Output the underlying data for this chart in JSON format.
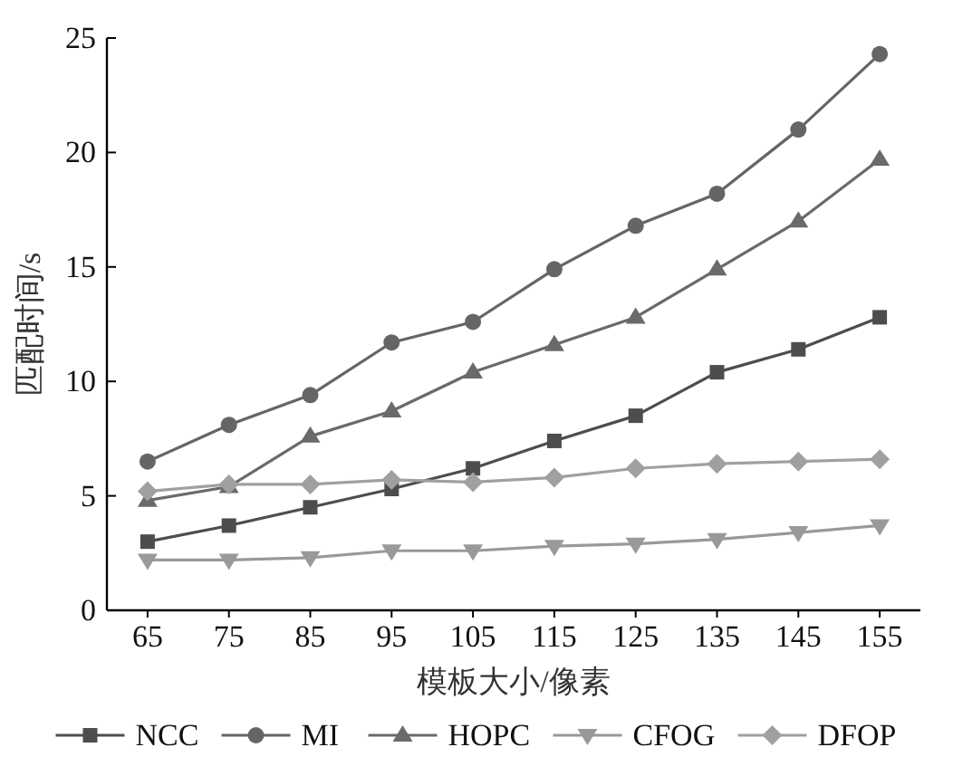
{
  "chart_data": {
    "type": "line",
    "xlabel": "模板大小/像素",
    "ylabel": "匹配时间/s",
    "categories": [
      "65",
      "75",
      "85",
      "95",
      "105",
      "115",
      "125",
      "135",
      "145",
      "155"
    ],
    "ylim": [
      0,
      25
    ],
    "yticks": [
      0,
      5,
      10,
      15,
      20,
      25
    ],
    "grid": false,
    "legend": "bottom",
    "series": [
      {
        "name": "NCC",
        "color": "#4d4d4d",
        "marker": "square",
        "values": [
          3.0,
          3.7,
          4.5,
          5.3,
          6.2,
          7.4,
          8.5,
          10.4,
          11.4,
          12.8
        ]
      },
      {
        "name": "MI",
        "color": "#656565",
        "marker": "circle",
        "values": [
          6.5,
          8.1,
          9.4,
          11.7,
          12.6,
          14.9,
          16.8,
          18.2,
          21.0,
          24.3
        ]
      },
      {
        "name": "HOPC",
        "color": "#6a6a6a",
        "marker": "triangle",
        "values": [
          4.8,
          5.4,
          7.6,
          8.7,
          10.4,
          11.6,
          12.8,
          14.9,
          17.0,
          19.7
        ]
      },
      {
        "name": "CFOG",
        "color": "#999999",
        "marker": "triangle_down",
        "values": [
          2.2,
          2.2,
          2.3,
          2.6,
          2.6,
          2.8,
          2.9,
          3.1,
          3.4,
          3.7
        ]
      },
      {
        "name": "DFOP",
        "color": "#a0a0a0",
        "marker": "diamond",
        "values": [
          5.2,
          5.5,
          5.5,
          5.7,
          5.6,
          5.8,
          6.2,
          6.4,
          6.5,
          6.6
        ]
      }
    ]
  }
}
